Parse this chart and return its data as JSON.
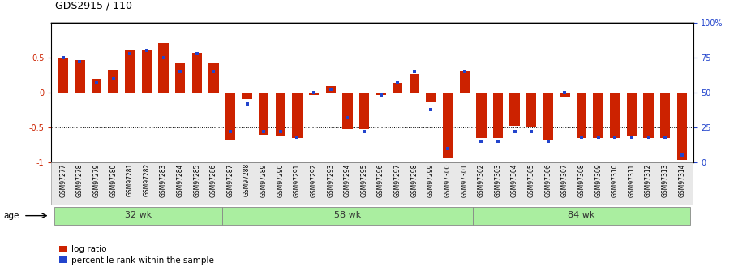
{
  "title": "GDS2915 / 110",
  "samples": [
    "GSM97277",
    "GSM97278",
    "GSM97279",
    "GSM97280",
    "GSM97281",
    "GSM97282",
    "GSM97283",
    "GSM97284",
    "GSM97285",
    "GSM97286",
    "GSM97287",
    "GSM97288",
    "GSM97289",
    "GSM97290",
    "GSM97291",
    "GSM97292",
    "GSM97293",
    "GSM97294",
    "GSM97295",
    "GSM97296",
    "GSM97297",
    "GSM97298",
    "GSM97299",
    "GSM97300",
    "GSM97301",
    "GSM97302",
    "GSM97303",
    "GSM97304",
    "GSM97305",
    "GSM97306",
    "GSM97307",
    "GSM97308",
    "GSM97309",
    "GSM97310",
    "GSM97311",
    "GSM97312",
    "GSM97313",
    "GSM97314"
  ],
  "log_ratio": [
    0.5,
    0.46,
    0.19,
    0.32,
    0.6,
    0.6,
    0.7,
    0.42,
    0.57,
    0.42,
    -0.68,
    -0.1,
    -0.6,
    -0.63,
    -0.65,
    -0.04,
    0.09,
    -0.52,
    -0.52,
    -0.04,
    0.14,
    0.27,
    -0.14,
    -0.94,
    0.3,
    -0.65,
    -0.65,
    -0.48,
    -0.5,
    -0.68,
    -0.06,
    -0.65,
    -0.65,
    -0.65,
    -0.62,
    -0.65,
    -0.65,
    -0.96
  ],
  "percentile": [
    75,
    72,
    57,
    60,
    78,
    80,
    75,
    65,
    78,
    65,
    22,
    42,
    22,
    22,
    18,
    50,
    52,
    32,
    22,
    48,
    57,
    65,
    38,
    10,
    65,
    15,
    15,
    22,
    22,
    15,
    50,
    18,
    18,
    18,
    18,
    18,
    18,
    5
  ],
  "groups": [
    {
      "label": "32 wk",
      "start": 0,
      "end": 9
    },
    {
      "label": "58 wk",
      "start": 10,
      "end": 24
    },
    {
      "label": "84 wk",
      "start": 25,
      "end": 37
    }
  ],
  "bar_color": "#cc2200",
  "dot_color": "#2244cc",
  "bg_color": "#ffffff",
  "group_color": "#aaeea0",
  "ylim": [
    -1,
    1
  ],
  "left_yticks": [
    -1,
    -0.5,
    0,
    0.5
  ],
  "left_yticklabels": [
    "-1",
    "-0.5",
    "0",
    "0.5"
  ],
  "right_yticks": [
    0,
    25,
    50,
    75,
    100
  ],
  "right_yticklabels": [
    "0",
    "25",
    "50",
    "75",
    "100%"
  ]
}
